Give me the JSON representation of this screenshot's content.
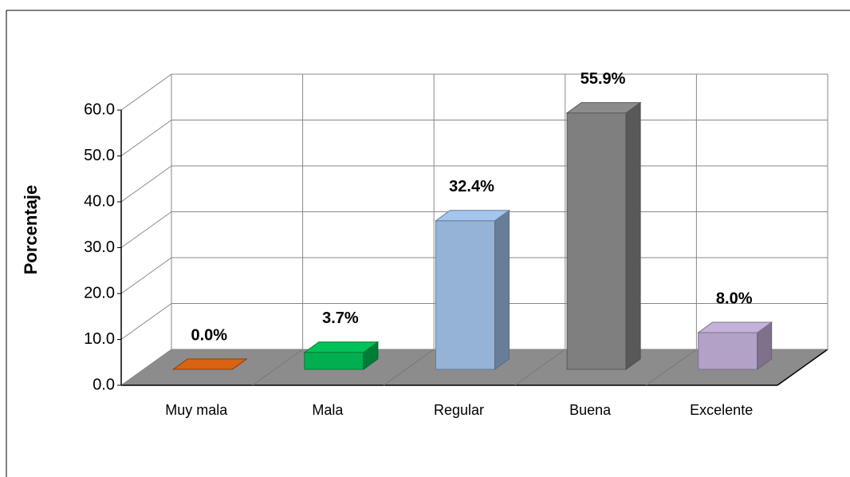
{
  "chart_data": {
    "type": "bar3d",
    "y_axis_label": "Porcentaje",
    "categories": [
      "Muy mala",
      "Mala",
      "Regular",
      "Buena",
      "Excelente"
    ],
    "values": [
      0.0,
      3.7,
      32.4,
      55.9,
      8.0
    ],
    "value_labels": [
      "0.0%",
      "3.7%",
      "32.4%",
      "55.9%",
      "8.0%"
    ],
    "colors": [
      "#c55a11",
      "#00b050",
      "#95b3d7",
      "#7f7f7f",
      "#b3a2c7"
    ],
    "ylim": [
      0,
      60
    ],
    "yticks": [
      {
        "value": 0,
        "label": "0.0"
      },
      {
        "value": 10,
        "label": "10.0"
      },
      {
        "value": 20,
        "label": "20.0"
      },
      {
        "value": 30,
        "label": "30.0"
      },
      {
        "value": 40,
        "label": "40.0"
      },
      {
        "value": 50,
        "label": "50.0"
      },
      {
        "value": 60,
        "label": "60.0"
      }
    ],
    "grid": true
  }
}
